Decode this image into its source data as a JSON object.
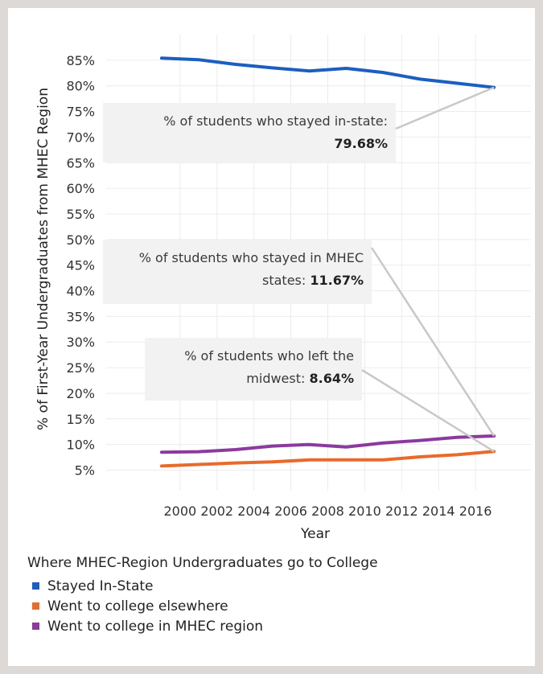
{
  "chart_data": {
    "type": "line",
    "xlabel": "Year",
    "ylabel": "% of First-Year Undergraduates from MHEC Region",
    "x": [
      1999,
      2001,
      2003,
      2005,
      2007,
      2009,
      2011,
      2013,
      2015,
      2017
    ],
    "xlim": [
      1996,
      2019
    ],
    "ylim": [
      1,
      90
    ],
    "x_ticks": [
      2000,
      2002,
      2004,
      2006,
      2008,
      2010,
      2012,
      2014,
      2016
    ],
    "x_tick_labels": [
      "2000",
      "2002",
      "2004",
      "2006",
      "2008",
      "2010",
      "2012",
      "2014",
      "2016"
    ],
    "y_ticks": [
      5,
      10,
      15,
      20,
      25,
      30,
      35,
      40,
      45,
      50,
      55,
      60,
      65,
      70,
      75,
      80,
      85
    ],
    "y_tick_labels": [
      "5%",
      "10%",
      "15%",
      "20%",
      "25%",
      "30%",
      "35%",
      "40%",
      "45%",
      "50%",
      "55%",
      "60%",
      "65%",
      "70%",
      "75%",
      "80%",
      "85%"
    ],
    "grid": true,
    "series": [
      {
        "name": "Stayed In-State",
        "color": "#1b5fbf",
        "values": [
          85.4,
          85.1,
          84.2,
          83.5,
          82.9,
          83.4,
          82.6,
          81.3,
          80.5,
          79.68
        ]
      },
      {
        "name": "Went to college elsewhere",
        "color": "#e86a2c",
        "values": [
          5.8,
          6.1,
          6.4,
          6.6,
          7.0,
          7.0,
          7.0,
          7.6,
          8.0,
          8.64
        ]
      },
      {
        "name": "Went to college in MHEC region",
        "color": "#8b3a9e",
        "values": [
          8.5,
          8.6,
          9.0,
          9.7,
          10.0,
          9.5,
          10.3,
          10.8,
          11.4,
          11.67
        ]
      }
    ],
    "annotations": [
      {
        "lines": [
          [
            "% of students who stayed in-state:",
            ""
          ],
          [
            "",
            "79.68%"
          ]
        ],
        "point": [
          2017,
          79.68
        ]
      },
      {
        "lines": [
          [
            "% of  students who stayed in MHEC",
            ""
          ],
          [
            "states: ",
            "11.67%"
          ]
        ],
        "point": [
          2017,
          11.67
        ]
      },
      {
        "lines": [
          [
            "% of students who left the",
            ""
          ],
          [
            "midwest: ",
            "8.64%"
          ]
        ],
        "point": [
          2017,
          8.64
        ]
      }
    ],
    "legend": {
      "title": "Where MHEC-Region Undergraduates go to College",
      "placement": "bottom-left"
    }
  }
}
